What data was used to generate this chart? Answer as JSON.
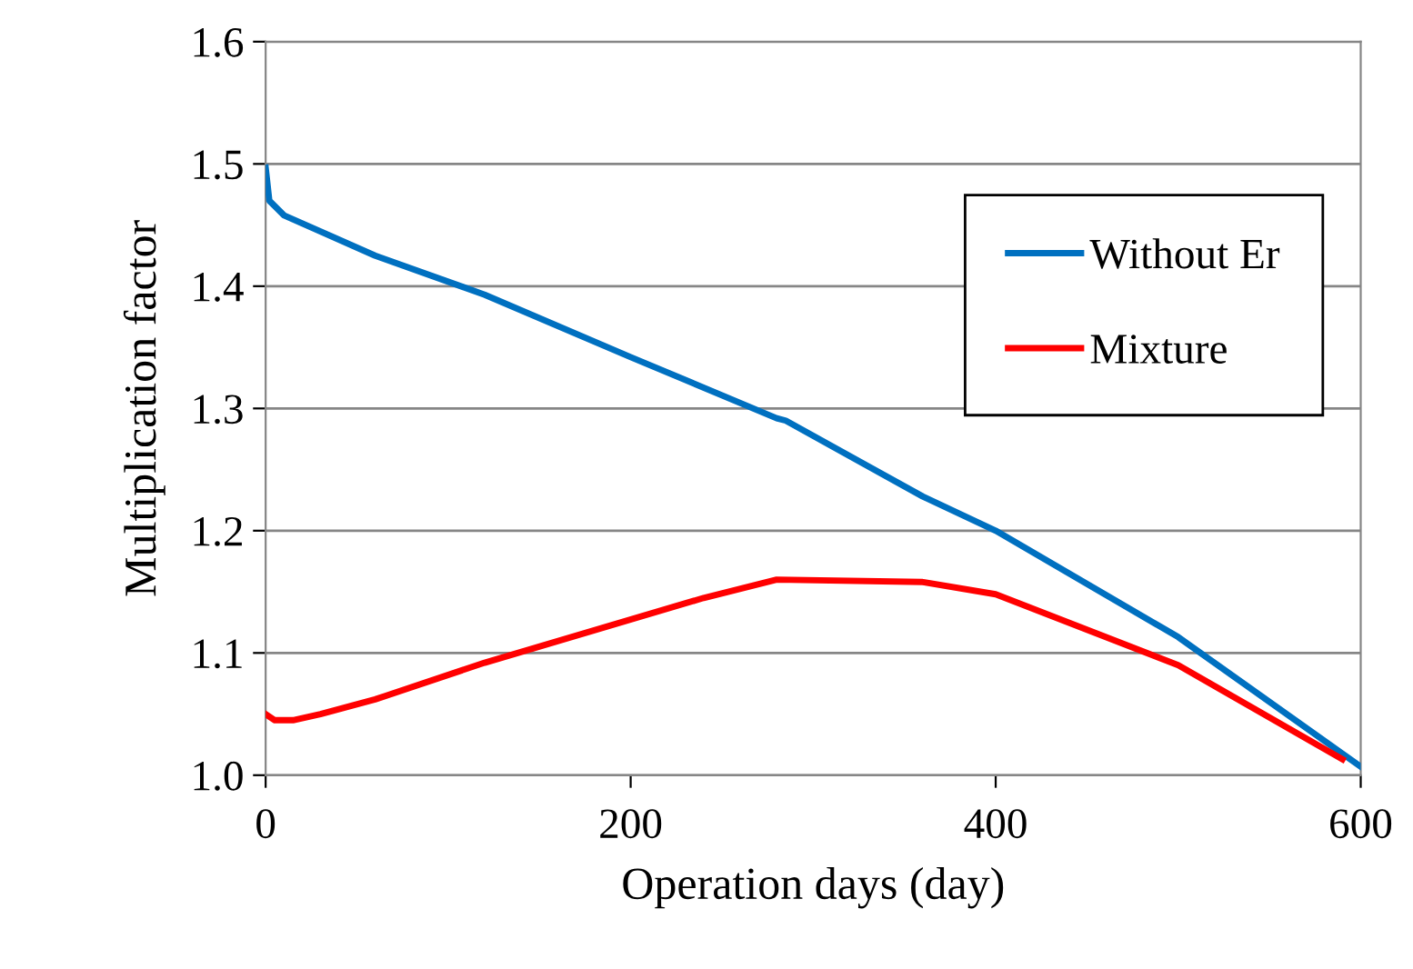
{
  "chart_data": {
    "type": "line",
    "xlabel": "Operation days (day)",
    "ylabel": "Multiplication factor",
    "xlim": [
      0,
      600
    ],
    "xticks": [
      0,
      200,
      400,
      600
    ],
    "ylim": [
      1.0,
      1.6
    ],
    "yticks": [
      {
        "value": 1.0,
        "label": "1.0"
      },
      {
        "value": 1.1,
        "label": "1.1"
      },
      {
        "value": 1.2,
        "label": "1.2"
      },
      {
        "value": 1.3,
        "label": "1.3"
      },
      {
        "value": 1.4,
        "label": "1.4"
      },
      {
        "value": 1.5,
        "label": "1.5"
      },
      {
        "value": 1.6,
        "label": "1.6"
      }
    ],
    "grid": "y",
    "legend": "top right",
    "marker": "none",
    "line_style": "solid",
    "series": [
      {
        "name": "Without Er",
        "color": "#0070c0",
        "x": [
          0,
          2,
          10,
          60,
          120,
          200,
          280,
          285,
          360,
          400,
          500,
          600
        ],
        "values": [
          1.497,
          1.47,
          1.458,
          1.425,
          1.393,
          1.342,
          1.292,
          1.29,
          1.228,
          1.2,
          1.113,
          1.007
        ]
      },
      {
        "name": "Mixture",
        "color": "#ff0000",
        "x": [
          0,
          5,
          15,
          30,
          60,
          120,
          240,
          280,
          360,
          400,
          500,
          590
        ],
        "values": [
          1.05,
          1.045,
          1.045,
          1.05,
          1.062,
          1.092,
          1.145,
          1.16,
          1.158,
          1.148,
          1.09,
          1.013
        ]
      }
    ]
  }
}
